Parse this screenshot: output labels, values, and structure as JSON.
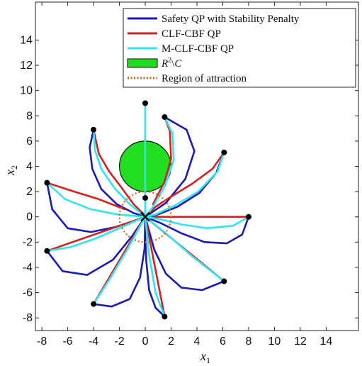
{
  "chart_data": {
    "type": "line",
    "title": "",
    "xlabel": "x1",
    "ylabel": "x2",
    "xlim": [
      -8.5,
      16.5
    ],
    "ylim": [
      -9,
      17
    ],
    "xticks": [
      -8,
      -6,
      -4,
      -2,
      0,
      2,
      4,
      6,
      8,
      10,
      12,
      14
    ],
    "yticks": [
      -8,
      -6,
      -4,
      -2,
      0,
      2,
      4,
      6,
      8,
      10,
      12,
      14
    ],
    "grid": false,
    "legend_position": "top-right",
    "legend": [
      {
        "label": "Safety QP with Stability Penalty",
        "color": "#1a1ab4",
        "style": "solid"
      },
      {
        "label": "CLF-CBF QP",
        "color": "#d42020",
        "style": "solid"
      },
      {
        "label": "M-CLF-CBF QP",
        "color": "#33e4ee",
        "style": "solid"
      },
      {
        "label": "R^2\\C",
        "color": "#22dd22",
        "style": "patch"
      },
      {
        "label": "Region of attraction",
        "color": "#c8641e",
        "style": "dotted"
      }
    ],
    "obstacle": {
      "center": [
        0,
        4
      ],
      "radius": 2,
      "color": "#22dd22"
    },
    "region_of_attraction": {
      "center": [
        0,
        0
      ],
      "radius": 2,
      "color": "#c8641e"
    },
    "equilibrium": [
      0,
      0
    ],
    "initial_points": [
      [
        0,
        9
      ],
      [
        1.5,
        7.9
      ],
      [
        -4,
        6.9
      ],
      [
        6.1,
        5.1
      ],
      [
        -7.6,
        2.7
      ],
      [
        0,
        1.5
      ],
      [
        8,
        0
      ],
      [
        -7.6,
        -2.7
      ],
      [
        6.1,
        -5.1
      ],
      [
        -4,
        -6.9
      ],
      [
        1.5,
        -7.9
      ]
    ],
    "series": [
      {
        "name": "Safety QP with Stability Penalty",
        "color": "#1a1ab4",
        "paths": [
          [
            [
              -4,
              6.9
            ],
            [
              -4.3,
              5.5
            ],
            [
              -4.1,
              3.8
            ],
            [
              -3.4,
              2.2
            ],
            [
              -2.2,
              1.0
            ],
            [
              -0.9,
              0.3
            ],
            [
              0,
              0
            ]
          ],
          [
            [
              1.5,
              7.9
            ],
            [
              3.2,
              6.9
            ],
            [
              3.8,
              5.2
            ],
            [
              3.1,
              3.0
            ],
            [
              1.6,
              1.1
            ],
            [
              0,
              0
            ]
          ],
          [
            [
              -7.6,
              2.7
            ],
            [
              -7.2,
              0.6
            ],
            [
              -6,
              -0.9
            ],
            [
              -4.2,
              -1.2
            ],
            [
              -2.3,
              -0.8
            ],
            [
              -0.8,
              -0.3
            ],
            [
              0,
              0
            ]
          ],
          [
            [
              -7.6,
              -2.7
            ],
            [
              -6.4,
              -4.3
            ],
            [
              -4.5,
              -4.6
            ],
            [
              -2.5,
              -3.4
            ],
            [
              -1,
              -1.5
            ],
            [
              0,
              0
            ]
          ],
          [
            [
              6.1,
              5.1
            ],
            [
              5.5,
              3.5
            ],
            [
              4.2,
              1.9
            ],
            [
              2.5,
              0.8
            ],
            [
              1,
              0.2
            ],
            [
              0,
              0
            ]
          ],
          [
            [
              8,
              0
            ],
            [
              7.5,
              -1.4
            ],
            [
              6.3,
              -2.1
            ],
            [
              4.6,
              -2.0
            ],
            [
              2.8,
              -1.3
            ],
            [
              1.2,
              -0.5
            ],
            [
              0,
              0
            ]
          ],
          [
            [
              6.1,
              -5.1
            ],
            [
              4.4,
              -5.8
            ],
            [
              2.8,
              -5.6
            ],
            [
              1.6,
              -4.5
            ],
            [
              0.7,
              -2.6
            ],
            [
              0,
              0
            ]
          ],
          [
            [
              -4,
              -6.9
            ],
            [
              -2.6,
              -7.1
            ],
            [
              -1.2,
              -6.5
            ],
            [
              -0.4,
              -4.8
            ],
            [
              -0.05,
              -2.5
            ],
            [
              0,
              0
            ]
          ],
          [
            [
              1.5,
              -7.9
            ],
            [
              0.8,
              -7.2
            ],
            [
              0.3,
              -5.8
            ],
            [
              0.08,
              -3.5
            ],
            [
              0,
              -1.5
            ],
            [
              0,
              0
            ]
          ]
        ]
      },
      {
        "name": "CLF-CBF QP",
        "color": "#d42020",
        "paths": [
          [
            [
              -4,
              6.9
            ],
            [
              -3.6,
              5.0
            ],
            [
              -2.8,
              3.6
            ],
            [
              -1.9,
              2.4
            ],
            [
              -0.9,
              1.0
            ],
            [
              -0.1,
              0.2
            ]
          ],
          [
            [
              1.5,
              7.9
            ],
            [
              1.9,
              6.8
            ],
            [
              2.0,
              4.6
            ],
            [
              1.5,
              2.8
            ],
            [
              0.6,
              1.0
            ]
          ],
          [
            [
              -7.6,
              2.7
            ],
            [
              -5.5,
              2.0
            ],
            [
              -3.6,
              1.4
            ],
            [
              -1.6,
              0.6
            ]
          ],
          [
            [
              6.1,
              5.1
            ],
            [
              5.2,
              3.8
            ],
            [
              3.6,
              2.6
            ],
            [
              2.0,
              1.6
            ],
            [
              0.8,
              0.8
            ],
            [
              0,
              0
            ]
          ],
          [
            [
              8,
              0
            ],
            [
              0,
              0
            ]
          ],
          [
            [
              -7.6,
              -2.7
            ],
            [
              0,
              0
            ]
          ],
          [
            [
              6.1,
              -5.1
            ],
            [
              0,
              0
            ]
          ],
          [
            [
              -4,
              -6.9
            ],
            [
              0,
              0
            ]
          ],
          [
            [
              1.5,
              -7.9
            ],
            [
              0,
              0
            ]
          ]
        ]
      },
      {
        "name": "M-CLF-CBF QP",
        "color": "#33e4ee",
        "paths": [
          [
            [
              0,
              9
            ],
            [
              0,
              0
            ]
          ],
          [
            [
              -4,
              6.9
            ],
            [
              -3.9,
              5.3
            ],
            [
              -3.4,
              3.8
            ],
            [
              -2.4,
              2.3
            ],
            [
              -1.2,
              1.0
            ],
            [
              0,
              0
            ]
          ],
          [
            [
              1.5,
              7.9
            ],
            [
              2.1,
              6.6
            ],
            [
              2.2,
              4.5
            ],
            [
              1.5,
              2.4
            ],
            [
              0.6,
              0.8
            ],
            [
              0,
              0
            ]
          ],
          [
            [
              6.1,
              5.1
            ],
            [
              5.6,
              3.6
            ],
            [
              4.1,
              2.0
            ],
            [
              2.3,
              0.9
            ],
            [
              0.8,
              0.2
            ],
            [
              0,
              0
            ]
          ],
          [
            [
              -7.6,
              2.7
            ],
            [
              -6.2,
              1.4
            ],
            [
              -4.2,
              0.6
            ],
            [
              -2.2,
              0.2
            ],
            [
              0,
              0
            ]
          ],
          [
            [
              0,
              1.5
            ],
            [
              0,
              0
            ]
          ],
          [
            [
              8,
              0
            ],
            [
              6.8,
              -0.7
            ],
            [
              4.8,
              -0.9
            ],
            [
              2.8,
              -0.6
            ],
            [
              1.2,
              -0.2
            ],
            [
              0,
              0
            ]
          ],
          [
            [
              -7.6,
              -2.7
            ],
            [
              -5.8,
              -2.4
            ],
            [
              -3.8,
              -1.7
            ],
            [
              -1.8,
              -0.8
            ],
            [
              0,
              0
            ]
          ],
          [
            [
              6.1,
              -5.1
            ],
            [
              3.6,
              -3.1
            ],
            [
              1.6,
              -1.3
            ],
            [
              0,
              0
            ]
          ],
          [
            [
              -4,
              -6.9
            ],
            [
              -2.8,
              -5.0
            ],
            [
              -1.4,
              -2.6
            ],
            [
              0,
              0
            ]
          ],
          [
            [
              1.5,
              -7.9
            ],
            [
              0.8,
              -6.0
            ],
            [
              0.3,
              -3.0
            ],
            [
              0,
              0
            ]
          ]
        ]
      }
    ]
  }
}
